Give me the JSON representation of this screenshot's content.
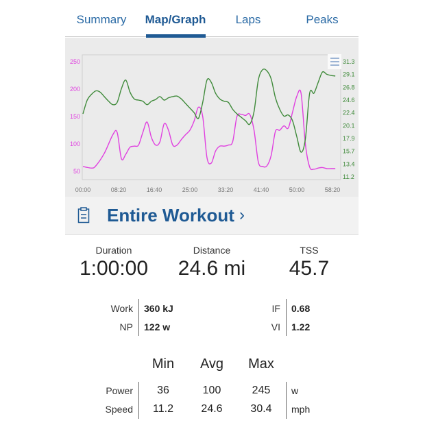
{
  "tabs": [
    {
      "label": "Summary"
    },
    {
      "label": "Map/Graph"
    },
    {
      "label": "Laps"
    },
    {
      "label": "Peaks"
    }
  ],
  "colors": {
    "accent": "#1f5a94",
    "power": "#e040e0",
    "speed": "#3f8a3a"
  },
  "chart_data": {
    "type": "line",
    "xlabel": "",
    "x_ticks": [
      "00:00",
      "08:20",
      "16:40",
      "25:00",
      "33:20",
      "41:40",
      "50:00",
      "58:20"
    ],
    "x_unit": "minutes",
    "xlim": [
      0,
      60
    ],
    "left_axis": {
      "ticks": [
        "250",
        "200",
        "150",
        "100",
        "50"
      ],
      "ylim": [
        40,
        250
      ]
    },
    "right_axis": {
      "ticks": [
        "31.3",
        "29.1",
        "26.8",
        "24.6",
        "22.4",
        "20.1",
        "17.9",
        "15.7",
        "13.4",
        "11.2"
      ],
      "ylim": [
        11.2,
        31.3
      ]
    },
    "series": [
      {
        "name": "Power",
        "axis": "left",
        "color": "#e040e0",
        "x": [
          0,
          2,
          3,
          5,
          7,
          8,
          9,
          10,
          11,
          12,
          13,
          14,
          15,
          16,
          17,
          18,
          19,
          20,
          21,
          22,
          23,
          24,
          25,
          26,
          27,
          28,
          29,
          30,
          31,
          32,
          33,
          34,
          35,
          36,
          37,
          38,
          39,
          40,
          41,
          42,
          43,
          44,
          45,
          46,
          47,
          48,
          49,
          50,
          51,
          52,
          53,
          54,
          55,
          56,
          57,
          58,
          59
        ],
        "values": [
          59,
          56,
          60,
          83,
          117,
          121,
          73,
          81,
          94,
          96,
          98,
          121,
          140,
          112,
          98,
          104,
          137,
          125,
          98,
          98,
          108,
          117,
          125,
          142,
          167,
          150,
          75,
          65,
          87,
          96,
          96,
          98,
          104,
          150,
          154,
          152,
          154,
          125,
          67,
          59,
          60,
          79,
          123,
          125,
          133,
          129,
          158,
          187,
          192,
          100,
          58,
          54,
          56,
          57,
          55,
          55,
          55
        ]
      },
      {
        "name": "Speed",
        "axis": "right",
        "color": "#3f8a3a",
        "x": [
          0,
          1,
          2,
          3,
          4,
          5,
          6,
          7,
          8,
          9,
          10,
          11,
          12,
          13,
          14,
          15,
          16,
          17,
          18,
          19,
          20,
          21,
          22,
          23,
          24,
          25,
          26,
          27,
          28,
          29,
          30,
          31,
          32,
          33,
          34,
          35,
          36,
          37,
          38,
          39,
          40,
          41,
          42,
          43,
          44,
          45,
          46,
          47,
          48,
          49,
          50,
          51,
          52,
          53,
          54,
          55,
          56,
          57,
          58,
          59
        ],
        "values": [
          22.2,
          24.6,
          25.6,
          26.2,
          26.0,
          25.2,
          24.4,
          23.8,
          24.2,
          26.6,
          28.1,
          26.0,
          24.8,
          24.6,
          24.4,
          23.8,
          24.4,
          24.7,
          25.2,
          24.6,
          25.0,
          25.2,
          25.3,
          24.8,
          24.0,
          23.2,
          22.4,
          21.4,
          24.2,
          28.1,
          27.7,
          25.8,
          24.8,
          24.4,
          24.2,
          23.0,
          22.2,
          21.6,
          21.0,
          20.4,
          22.6,
          28.1,
          29.9,
          29.7,
          28.3,
          25.0,
          23.0,
          21.8,
          22.0,
          21.0,
          18.2,
          15.5,
          17.8,
          25.8,
          25.8,
          27.7,
          29.5,
          29.1,
          28.9,
          28.8
        ]
      }
    ]
  },
  "workout": {
    "title": "Entire Workout",
    "chevron": "›"
  },
  "summary": [
    {
      "label": "Duration",
      "value": "1:00:00"
    },
    {
      "label": "Distance",
      "value": "24.6 mi"
    },
    {
      "label": "TSS",
      "value": "45.7"
    }
  ],
  "metrics_left": [
    {
      "key": "Work",
      "value": "360 kJ"
    },
    {
      "key": "NP",
      "value": "122 w"
    }
  ],
  "metrics_right": [
    {
      "key": "IF",
      "value": "0.68"
    },
    {
      "key": "VI",
      "value": "1.22"
    }
  ],
  "table": {
    "headers": [
      "Min",
      "Avg",
      "Max"
    ],
    "rows": [
      {
        "label": "Power",
        "min": "36",
        "avg": "100",
        "max": "245",
        "unit": "w"
      },
      {
        "label": "Speed",
        "min": "11.2",
        "avg": "24.6",
        "max": "30.4",
        "unit": "mph"
      }
    ]
  }
}
